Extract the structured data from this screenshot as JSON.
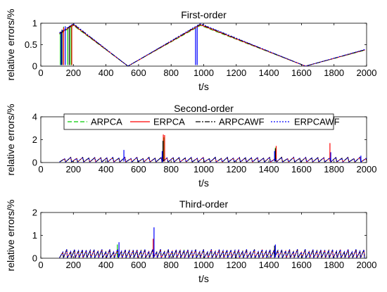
{
  "chart_data": [
    {
      "type": "line",
      "title": "First-order",
      "xlabel": "t/s",
      "ylabel": "relative errors/%",
      "xlim": [
        0,
        2000
      ],
      "ylim": [
        0,
        1
      ],
      "xticks": [
        "0",
        "200",
        "400",
        "600",
        "800",
        "1000",
        "1200",
        "1400",
        "1600",
        "1800",
        "2000"
      ],
      "yticks": [
        "0",
        "0.5",
        "1"
      ],
      "grid": false,
      "pattern": {
        "kind": "vtriangle",
        "start": 115,
        "end": 1990,
        "minima": [
          535,
          1625
        ],
        "maxima": [
          980
        ],
        "peak": 0.97
      },
      "series": [
        {
          "name": "ARPCA",
          "color": "#00cc00",
          "dash": "6,3",
          "spikes": [
            [
              120,
              0.8
            ],
            [
              140,
              0.92
            ],
            [
              165,
              0.88
            ],
            [
              185,
              0.95
            ]
          ]
        },
        {
          "name": "ERPCA",
          "color": "#ff0000",
          "dash": "",
          "spikes": [
            [
              140,
              0.9
            ],
            [
              190,
              0.96
            ]
          ]
        },
        {
          "name": "ARPCAWF",
          "color": "#000000",
          "dash": "7,2,2,2",
          "spikes": [
            [
              130,
              0.85
            ],
            [
              175,
              0.9
            ]
          ]
        },
        {
          "name": "ERPCAWF",
          "color": "#0000ff",
          "dash": "2,2",
          "spikes": [
            [
              125,
              0.78
            ],
            [
              150,
              0.93
            ],
            [
              950,
              0.88
            ],
            [
              960,
              0.92
            ]
          ]
        }
      ]
    },
    {
      "type": "line",
      "title": "Second-order",
      "xlabel": "t/s",
      "ylabel": "relative errors/%",
      "xlim": [
        0,
        2000
      ],
      "ylim": [
        0,
        4
      ],
      "xticks": [
        "0",
        "200",
        "400",
        "600",
        "800",
        "1000",
        "1200",
        "1400",
        "1600",
        "1800",
        "2000"
      ],
      "yticks": [
        "0",
        "2",
        "4"
      ],
      "grid": false,
      "pattern": {
        "kind": "sawtooth",
        "start": 115,
        "end": 1985,
        "base": 0.12,
        "amp": 0.28,
        "period": 37
      },
      "series": [
        {
          "name": "ARPCA",
          "color": "#00cc00",
          "dash": "6,3",
          "spikes": [
            [
              755,
              2.2
            ],
            [
              1440,
              1.3
            ]
          ]
        },
        {
          "name": "ERPCA",
          "color": "#ff0000",
          "dash": "",
          "spikes": [
            [
              752,
              2.45
            ],
            [
              760,
              2.4
            ],
            [
              1445,
              1.45
            ],
            [
              1775,
              1.7
            ]
          ]
        },
        {
          "name": "ARPCAWF",
          "color": "#000000",
          "dash": "7,2,2,2",
          "spikes": [
            [
              750,
              1.9
            ],
            [
              1440,
              1.2
            ]
          ]
        },
        {
          "name": "ERPCAWF",
          "color": "#0000ff",
          "dash": "2,2",
          "spikes": [
            [
              510,
              1.1
            ],
            [
              745,
              1.0
            ],
            [
              1435,
              1.0
            ],
            [
              1780,
              0.9
            ],
            [
              1965,
              0.6
            ]
          ]
        }
      ]
    },
    {
      "type": "line",
      "title": "Third-order",
      "xlabel": "t/s",
      "ylabel": "relative errors/%",
      "xlim": [
        0,
        2000
      ],
      "ylim": [
        0,
        2
      ],
      "xticks": [
        "0",
        "200",
        "400",
        "600",
        "800",
        "1000",
        "1200",
        "1400",
        "1600",
        "1800",
        "2000"
      ],
      "yticks": [
        "0",
        "1",
        "2"
      ],
      "grid": false,
      "pattern": {
        "kind": "sawtooth",
        "start": 115,
        "end": 1985,
        "base": 0.05,
        "amp": 0.28,
        "period": 24
      },
      "series": [
        {
          "name": "ARPCA",
          "color": "#00cc00",
          "dash": "6,3",
          "spikes": [
            [
              470,
              0.6
            ]
          ]
        },
        {
          "name": "ERPCA",
          "color": "#ff0000",
          "dash": "",
          "spikes": [
            [
              690,
              0.85
            ]
          ]
        },
        {
          "name": "ARPCAWF",
          "color": "#000000",
          "dash": "7,2,2,2",
          "spikes": [
            [
              1435,
              0.55
            ]
          ]
        },
        {
          "name": "ERPCAWF",
          "color": "#0000ff",
          "dash": "2,2",
          "spikes": [
            [
              695,
              1.35
            ],
            [
              480,
              0.7
            ],
            [
              1440,
              0.6
            ]
          ]
        }
      ]
    }
  ],
  "legend": {
    "placement": "top (over Second-order)",
    "entries": [
      {
        "label": "ARPCA",
        "color": "#00cc00",
        "dash": "6,3"
      },
      {
        "label": "ERPCA",
        "color": "#ff0000",
        "dash": ""
      },
      {
        "label": "ARPCAWF",
        "color": "#000000",
        "dash": "7,2,2,2"
      },
      {
        "label": "ERPCAWF",
        "color": "#0000ff",
        "dash": "2,2"
      }
    ]
  }
}
